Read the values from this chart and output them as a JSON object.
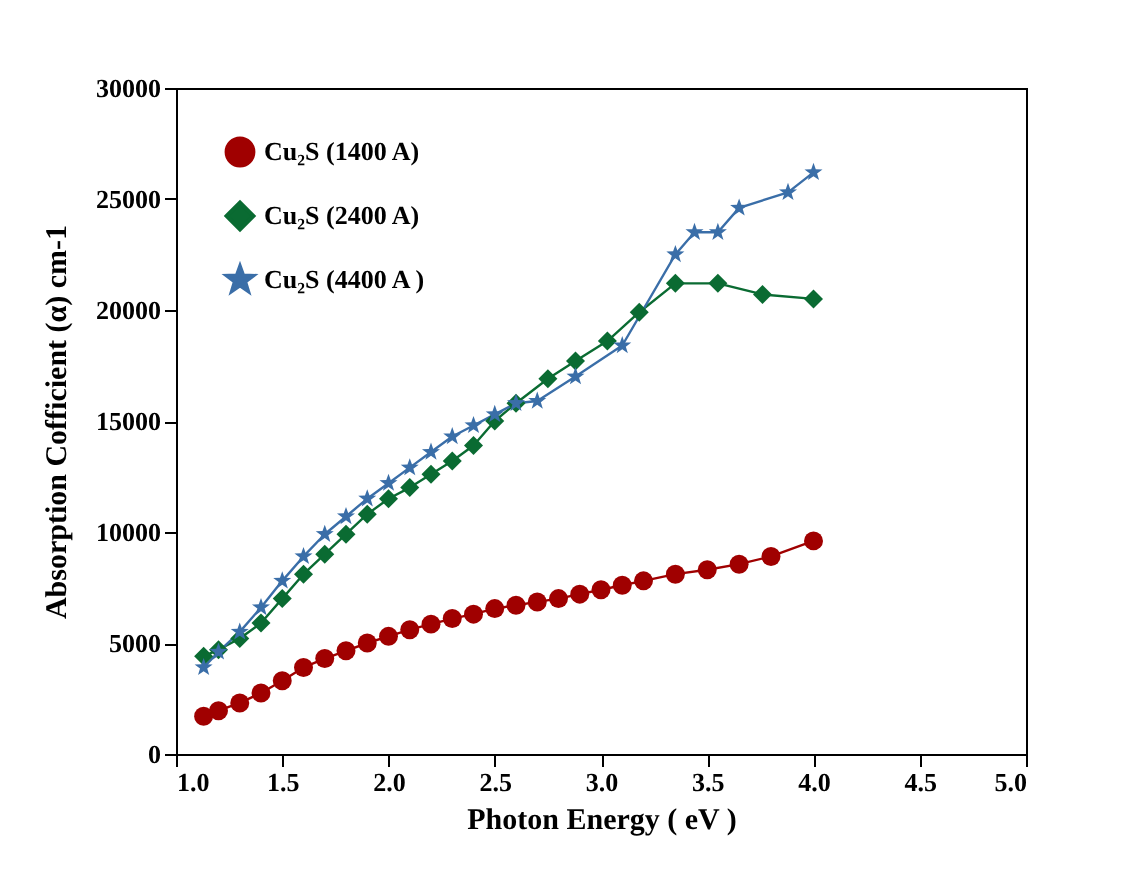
{
  "chart_data": {
    "type": "line",
    "xlabel": "Photon Energy ( eV )",
    "ylabel": "Absorption Cofficient (α)   cm-1",
    "xlim": [
      1.0,
      5.0
    ],
    "xticks": [
      {
        "value": 1,
        "label": "1.0"
      },
      1.5,
      {
        "value": 2,
        "label": "2.0"
      },
      2.5,
      {
        "value": 3,
        "label": "3.0"
      },
      3.5,
      {
        "value": 4,
        "label": "4.0"
      },
      4.5,
      {
        "value": 5,
        "label": "5.0"
      }
    ],
    "ylim": [
      0,
      30000
    ],
    "yticks": [
      0,
      5000,
      10000,
      15000,
      20000,
      25000,
      30000
    ],
    "grid": false,
    "legend": "top left",
    "series": [
      {
        "name": "Cu₂S (1400 A)",
        "color": "#a00000",
        "marker": "circle",
        "x": [
          1.13,
          1.2,
          1.3,
          1.4,
          1.5,
          1.6,
          1.7,
          1.8,
          1.9,
          2.0,
          2.1,
          2.2,
          2.3,
          2.4,
          2.5,
          2.6,
          2.7,
          2.8,
          2.9,
          3.0,
          3.1,
          3.2,
          3.35,
          3.5,
          3.65,
          3.8,
          4.0
        ],
        "values": [
          1700,
          1950,
          2300,
          2750,
          3300,
          3900,
          4300,
          4650,
          5000,
          5300,
          5600,
          5850,
          6100,
          6300,
          6550,
          6700,
          6850,
          7000,
          7200,
          7400,
          7600,
          7800,
          8100,
          8300,
          8550,
          8900,
          9600
        ]
      },
      {
        "name": "Cu₂S (2400 A)",
        "color": "#0a6b32",
        "marker": "diamond",
        "x": [
          1.13,
          1.2,
          1.3,
          1.4,
          1.5,
          1.6,
          1.7,
          1.8,
          1.9,
          2.0,
          2.1,
          2.2,
          2.3,
          2.4,
          2.5,
          2.6,
          2.75,
          2.88,
          3.03,
          3.18,
          3.35,
          3.55,
          3.76,
          4.0
        ],
        "values": [
          4400,
          4700,
          5200,
          5900,
          7000,
          8100,
          9000,
          9900,
          10800,
          11500,
          12000,
          12600,
          13200,
          13900,
          15000,
          15800,
          16900,
          17700,
          18600,
          19900,
          21200,
          21200,
          20700,
          20500
        ]
      },
      {
        "name": "Cu₂S (4400 A )",
        "color": "#3a6ea8",
        "marker": "star",
        "x": [
          1.13,
          1.2,
          1.3,
          1.4,
          1.5,
          1.6,
          1.7,
          1.8,
          1.9,
          2.0,
          2.1,
          2.2,
          2.3,
          2.4,
          2.5,
          2.6,
          2.7,
          2.88,
          3.1,
          3.35,
          3.44,
          3.55,
          3.65,
          3.88,
          4.0
        ],
        "values": [
          3900,
          4600,
          5500,
          6600,
          7800,
          8900,
          9900,
          10700,
          11500,
          12200,
          12900,
          13600,
          14300,
          14800,
          15300,
          15800,
          15900,
          17000,
          18400,
          22500,
          23500,
          23500,
          24600,
          25300,
          26200
        ]
      }
    ]
  }
}
